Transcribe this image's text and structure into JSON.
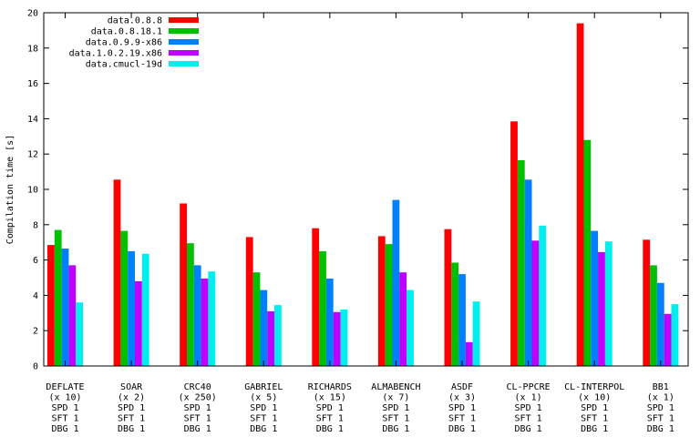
{
  "chart_data": {
    "type": "bar",
    "ylabel": "Compilation time [s]",
    "ylim": [
      0,
      20
    ],
    "yticks": [
      0,
      2,
      4,
      6,
      8,
      10,
      12,
      14,
      16,
      18,
      20
    ],
    "grid": false,
    "legend_position": "top-left",
    "categories": [
      {
        "name": "DEFLATE",
        "mult": "(x 10)",
        "spd": "SPD 1",
        "sft": "SFT 1",
        "dbg": "DBG 1"
      },
      {
        "name": "SOAR",
        "mult": "(x 2)",
        "spd": "SPD 1",
        "sft": "SFT 1",
        "dbg": "DBG 1"
      },
      {
        "name": "CRC40",
        "mult": "(x 250)",
        "spd": "SPD 1",
        "sft": "SFT 1",
        "dbg": "DBG 1"
      },
      {
        "name": "GABRIEL",
        "mult": "(x 5)",
        "spd": "SPD 1",
        "sft": "SFT 1",
        "dbg": "DBG 1"
      },
      {
        "name": "RICHARDS",
        "mult": "(x 15)",
        "spd": "SPD 1",
        "sft": "SFT 1",
        "dbg": "DBG 1"
      },
      {
        "name": "ALMABENCH",
        "mult": "(x 7)",
        "spd": "SPD 1",
        "sft": "SFT 1",
        "dbg": "DBG 1"
      },
      {
        "name": "ASDF",
        "mult": "(x 3)",
        "spd": "SPD 1",
        "sft": "SFT 1",
        "dbg": "DBG 1"
      },
      {
        "name": "CL-PPCRE",
        "mult": "(x 1)",
        "spd": "SPD 1",
        "sft": "SFT 1",
        "dbg": "DBG 1"
      },
      {
        "name": "CL-INTERPOL",
        "mult": "(x 10)",
        "spd": "SPD 1",
        "sft": "SFT 1",
        "dbg": "DBG 1"
      },
      {
        "name": "BB1",
        "mult": "(x 1)",
        "spd": "SPD 1",
        "sft": "SFT 1",
        "dbg": "DBG 1"
      }
    ],
    "series": [
      {
        "name": "data.0.8.8",
        "color": "#ff0000",
        "values": [
          6.85,
          10.55,
          9.2,
          7.3,
          7.8,
          7.35,
          7.75,
          13.85,
          19.4,
          7.15
        ]
      },
      {
        "name": "data.0.8.18.1",
        "color": "#00c000",
        "values": [
          7.7,
          7.65,
          6.95,
          5.3,
          6.5,
          6.9,
          5.85,
          11.65,
          12.8,
          5.7
        ]
      },
      {
        "name": "data.0.9.9-x86",
        "color": "#0080ff",
        "values": [
          6.65,
          6.5,
          5.7,
          4.3,
          4.95,
          9.4,
          5.2,
          10.55,
          7.65,
          4.7
        ]
      },
      {
        "name": "data.1.0.2.19.x86",
        "color": "#c000ff",
        "values": [
          5.7,
          4.8,
          4.95,
          3.1,
          3.05,
          5.3,
          1.35,
          7.1,
          6.45,
          2.95
        ]
      },
      {
        "name": "data.cmucl-19d",
        "color": "#00eeee",
        "values": [
          3.6,
          6.35,
          5.35,
          3.45,
          3.2,
          4.3,
          3.65,
          7.95,
          7.05,
          3.5
        ]
      }
    ]
  }
}
